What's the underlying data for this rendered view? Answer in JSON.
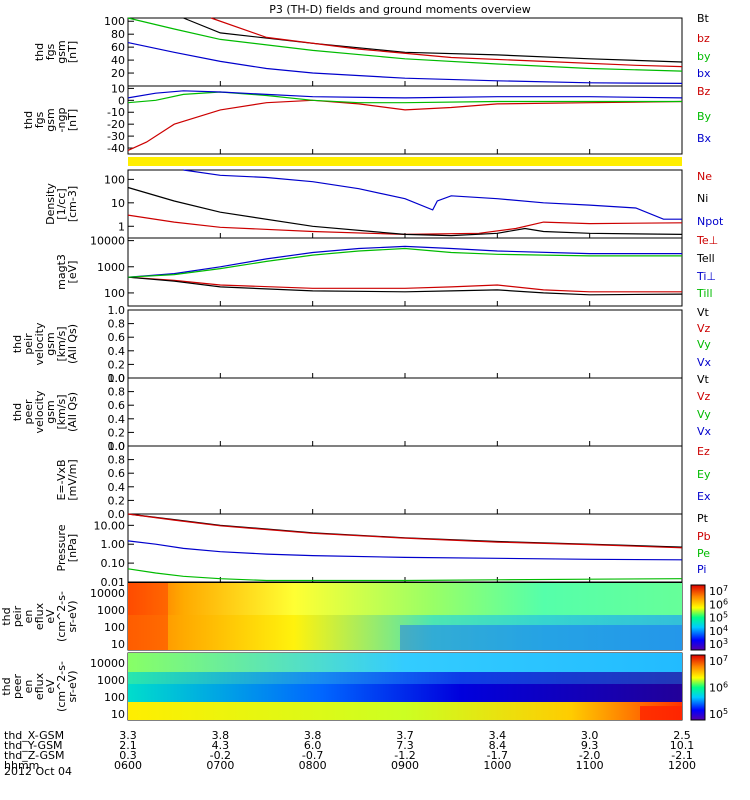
{
  "chart_data": [
    {
      "type": "line",
      "title": "P3 (TH-D) fields and ground moments overview",
      "ylabel_lines": [
        "thd",
        "fgs",
        "gsm",
        "[nT]"
      ],
      "yticks": [
        "100",
        "80",
        "60",
        "40",
        "20"
      ],
      "ylim": [
        0,
        105
      ],
      "series": [
        {
          "name": "Bt",
          "color": "#000000",
          "x": [
            0.6,
            1,
            2,
            3,
            4,
            5,
            6
          ],
          "values": [
            105,
            82,
            66,
            52,
            48,
            42,
            37
          ]
        },
        {
          "name": "bz",
          "color": "#cc0000",
          "x": [
            0.9,
            1.5,
            2.5,
            3.5,
            4.5,
            5.5,
            6
          ],
          "values": [
            105,
            75,
            57,
            44,
            38,
            32,
            30
          ]
        },
        {
          "name": "by",
          "color": "#00bb00",
          "x": [
            0,
            0.5,
            1,
            2,
            3,
            4,
            5,
            6
          ],
          "values": [
            105,
            88,
            72,
            55,
            42,
            34,
            27,
            23
          ]
        },
        {
          "name": "bx",
          "color": "#0000cc",
          "x": [
            0,
            0.5,
            1,
            1.5,
            2,
            3,
            4,
            5,
            6
          ],
          "values": [
            67,
            52,
            38,
            27,
            20,
            12,
            8,
            5,
            4
          ]
        }
      ]
    },
    {
      "type": "line",
      "ylabel_lines": [
        "thd",
        "fgs",
        "gsm",
        "-ngp",
        "[nT]"
      ],
      "yticks": [
        "10",
        "0",
        "-10",
        "-20",
        "-30",
        "-40"
      ],
      "ylim": [
        -45,
        12
      ],
      "series": [
        {
          "name": "Bz",
          "color": "#cc0000",
          "x": [
            0,
            0.2,
            0.5,
            1,
            1.5,
            2,
            2.5,
            3,
            3.5,
            4,
            5,
            6
          ],
          "values": [
            -42,
            -35,
            -20,
            -8,
            -2,
            0,
            -3,
            -8,
            -6,
            -3,
            -2,
            -1
          ]
        },
        {
          "name": "By",
          "color": "#00bb00",
          "x": [
            0,
            0.3,
            0.6,
            1,
            1.5,
            2,
            2.5,
            3,
            4,
            5,
            6
          ],
          "values": [
            -2,
            0,
            5,
            7,
            4,
            0,
            -2,
            -2,
            -1,
            -1,
            -1
          ]
        },
        {
          "name": "Bx",
          "color": "#0000cc",
          "x": [
            0,
            0.3,
            0.6,
            1,
            1.5,
            2,
            3,
            4,
            5,
            6
          ],
          "values": [
            2,
            6,
            8,
            7,
            5,
            3,
            2,
            3,
            3,
            2
          ]
        }
      ]
    },
    {
      "type": "line",
      "log": true,
      "ylabel_lines": [
        "Density",
        "[1/cc]",
        "[cm-3]"
      ],
      "yticks": [
        "100",
        "10",
        "1"
      ],
      "ylim_exp": [
        -0.5,
        2.4
      ],
      "series": [
        {
          "name": "Ne",
          "color": "#cc0000",
          "x": [
            0,
            0.5,
            1,
            2,
            3,
            3.8,
            4.2,
            4.5,
            5,
            6
          ],
          "values": [
            3,
            1.5,
            0.9,
            0.6,
            0.45,
            0.5,
            0.8,
            1.5,
            1.3,
            1.4
          ]
        },
        {
          "name": "Ni",
          "color": "#000000",
          "x": [
            0,
            0.5,
            1,
            2,
            3,
            3.5,
            4,
            4.3,
            4.5,
            5,
            6
          ],
          "values": [
            45,
            12,
            4,
            1,
            0.45,
            0.4,
            0.5,
            0.8,
            0.6,
            0.5,
            0.45
          ]
        },
        {
          "name": "Npot",
          "color": "#0000cc",
          "x": [
            0.6,
            1,
            1.5,
            2,
            2.5,
            3,
            3.3,
            3.35,
            3.5,
            4,
            4.5,
            5,
            5.5,
            5.8,
            6
          ],
          "values": [
            250,
            150,
            120,
            80,
            40,
            15,
            5,
            12,
            20,
            15,
            10,
            8,
            6,
            2,
            2
          ]
        }
      ]
    },
    {
      "type": "line",
      "log": true,
      "ylabel_lines": [
        "magt3",
        "[eV]"
      ],
      "yticks": [
        "10000",
        "1000",
        "100"
      ],
      "ylim_exp": [
        1.5,
        4.1
      ],
      "series": [
        {
          "name": "Te⊥",
          "color": "#cc0000",
          "x": [
            0,
            0.5,
            1,
            2,
            3,
            3.5,
            4,
            4.5,
            5,
            6
          ],
          "values": [
            400,
            300,
            200,
            150,
            150,
            170,
            200,
            130,
            110,
            110
          ]
        },
        {
          "name": "Tell",
          "color": "#000000",
          "x": [
            0,
            0.5,
            1,
            2,
            3,
            3.5,
            4,
            4.5,
            5,
            6
          ],
          "values": [
            400,
            280,
            170,
            120,
            110,
            120,
            130,
            100,
            85,
            90
          ]
        },
        {
          "name": "Ti⊥",
          "color": "#0000cc",
          "x": [
            0,
            0.5,
            1,
            1.5,
            2,
            2.5,
            3,
            3.5,
            4,
            5,
            6
          ],
          "values": [
            400,
            550,
            1000,
            2000,
            3500,
            5000,
            6000,
            5000,
            4000,
            3200,
            3200
          ]
        },
        {
          "name": "Till",
          "color": "#00bb00",
          "x": [
            0,
            0.5,
            1,
            1.5,
            2,
            2.5,
            3,
            3.5,
            4,
            5,
            6
          ],
          "values": [
            400,
            500,
            850,
            1600,
            2800,
            4000,
            5000,
            3500,
            3000,
            2600,
            2600
          ]
        }
      ]
    },
    {
      "type": "line",
      "ylabel_lines": [
        "thd",
        "peir",
        "velocity",
        "gsm",
        "[km/s]",
        "(All Qs)"
      ],
      "yticks": [
        "1.0",
        "0.8",
        "0.6",
        "0.4",
        "0.2",
        "0.0"
      ],
      "ylim": [
        0,
        1
      ],
      "legend": [
        {
          "name": "Vt",
          "color": "#000000"
        },
        {
          "name": "Vz",
          "color": "#cc0000"
        },
        {
          "name": "Vy",
          "color": "#00bb00"
        },
        {
          "name": "Vx",
          "color": "#0000cc"
        }
      ],
      "series": []
    },
    {
      "type": "line",
      "ylabel_lines": [
        "thd",
        "peer",
        "velocity",
        "gsm",
        "[km/s]",
        "(All Qs)"
      ],
      "yticks": [
        "1.0",
        "0.8",
        "0.6",
        "0.4",
        "0.2",
        "0.0"
      ],
      "ylim": [
        0,
        1
      ],
      "legend": [
        {
          "name": "Vt",
          "color": "#000000"
        },
        {
          "name": "Vz",
          "color": "#cc0000"
        },
        {
          "name": "Vy",
          "color": "#00bb00"
        },
        {
          "name": "Vx",
          "color": "#0000cc"
        }
      ],
      "series": []
    },
    {
      "type": "line",
      "ylabel_lines": [
        "E=-VxB",
        "[mV/m]"
      ],
      "yticks": [
        "1.0",
        "0.8",
        "0.6",
        "0.4",
        "0.2",
        "0.0"
      ],
      "ylim": [
        0,
        1
      ],
      "legend": [
        {
          "name": "Ez",
          "color": "#cc0000"
        },
        {
          "name": "Ey",
          "color": "#00bb00"
        },
        {
          "name": "Ex",
          "color": "#0000cc"
        }
      ],
      "series": []
    },
    {
      "type": "line",
      "log": true,
      "ylabel_lines": [
        "Pressure",
        "[nPa]"
      ],
      "yticks": [
        "10.00",
        "1.00",
        "0.10",
        "0.01"
      ],
      "ylim_exp": [
        -2,
        1.6
      ],
      "series": [
        {
          "name": "Pt",
          "color": "#000000",
          "x": [
            0,
            0.5,
            1,
            2,
            3,
            4,
            5,
            6
          ],
          "values": [
            40,
            20,
            10,
            4,
            2.2,
            1.4,
            1,
            0.7
          ]
        },
        {
          "name": "Pb",
          "color": "#cc0000",
          "x": [
            0,
            0.5,
            1,
            2,
            3,
            4,
            5,
            6
          ],
          "values": [
            40,
            19,
            9.5,
            3.8,
            2.1,
            1.3,
            0.95,
            0.65
          ]
        },
        {
          "name": "Pe",
          "color": "#00bb00",
          "x": [
            0,
            0.3,
            0.6,
            1,
            1.5,
            2,
            3,
            4,
            5,
            6
          ],
          "values": [
            0.05,
            0.03,
            0.02,
            0.015,
            0.012,
            0.012,
            0.012,
            0.013,
            0.014,
            0.015
          ]
        },
        {
          "name": "Pi",
          "color": "#0000cc",
          "x": [
            0,
            0.3,
            0.6,
            1,
            1.5,
            2,
            3,
            4,
            5,
            6
          ],
          "values": [
            1.5,
            1,
            0.6,
            0.4,
            0.3,
            0.25,
            0.2,
            0.18,
            0.16,
            0.15
          ]
        }
      ]
    },
    {
      "type": "heatmap",
      "ylabel_lines": [
        "thd",
        "peir",
        "en",
        "eflux",
        "eV",
        "(cm^2-s-",
        "sr-eV)"
      ],
      "yticks": [
        "10000",
        "1000",
        "100",
        "10"
      ],
      "colorbar_ticks": [
        "10^7",
        "10^6",
        "10^5",
        "10^4",
        "10^3"
      ]
    },
    {
      "type": "heatmap",
      "ylabel_lines": [
        "thd",
        "peer",
        "en",
        "eflux",
        "eV",
        "(cm^2-s-",
        "sr-eV)"
      ],
      "yticks": [
        "10000",
        "1000",
        "100",
        "10"
      ],
      "colorbar_ticks": [
        "10^7",
        "10^6",
        "10^5"
      ]
    }
  ],
  "footer": {
    "rows": [
      {
        "label": "thd_X-GSM",
        "values": [
          "3.3",
          "3.8",
          "3.8",
          "3.7",
          "3.4",
          "3.0",
          "2.5"
        ]
      },
      {
        "label": "thd_Y-GSM",
        "values": [
          "2.1",
          "4.3",
          "6.0",
          "7.3",
          "8.4",
          "9.3",
          "10.1"
        ]
      },
      {
        "label": "thd_Z-GSM",
        "values": [
          "0.3",
          "-0.2",
          "-0.7",
          "-1.2",
          "-1.7",
          "-2.0",
          "-2.1"
        ]
      },
      {
        "label": "hhmm",
        "values": [
          "0600",
          "0700",
          "0800",
          "0900",
          "1000",
          "1100",
          "1200"
        ]
      }
    ],
    "date": "2012 Oct 04"
  },
  "separator_color": "#ffee00"
}
